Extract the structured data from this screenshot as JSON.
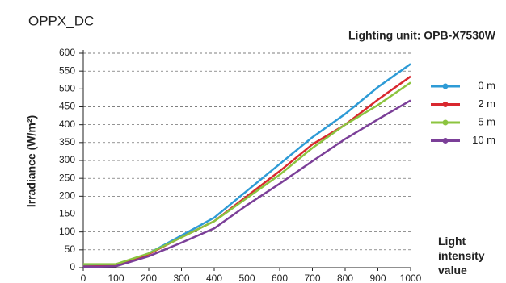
{
  "chart_data": {
    "type": "line",
    "title": "OPPX_DC",
    "subtitle": "Lighting unit: OPB-X7530W",
    "y_label": "Irradiance (W/m²)",
    "x_label": "Light intensity value",
    "x": [
      0,
      100,
      200,
      300,
      400,
      500,
      600,
      700,
      800,
      900,
      1000
    ],
    "series": [
      {
        "name": "0 m",
        "color": "#2e9bd6",
        "values": [
          5,
          5,
          40,
          90,
          140,
          215,
          290,
          365,
          430,
          505,
          570
        ]
      },
      {
        "name": "2 m",
        "color": "#d9282f",
        "values": [
          3,
          5,
          38,
          85,
          130,
          200,
          270,
          345,
          400,
          470,
          535
        ]
      },
      {
        "name": "5 m",
        "color": "#8cc43f",
        "values": [
          10,
          10,
          40,
          85,
          130,
          195,
          260,
          335,
          400,
          455,
          518
        ]
      },
      {
        "name": "10 m",
        "color": "#7b3f98",
        "values": [
          2,
          4,
          32,
          70,
          110,
          175,
          235,
          298,
          360,
          415,
          468
        ]
      }
    ],
    "xlim": [
      0,
      1000
    ],
    "xticks": [
      0,
      100,
      200,
      300,
      400,
      500,
      600,
      700,
      800,
      900,
      1000
    ],
    "ylim": [
      0,
      600
    ],
    "yticks": [
      0,
      50,
      100,
      150,
      200,
      250,
      300,
      350,
      400,
      450,
      500,
      550,
      600
    ],
    "grid": true,
    "legend": "right"
  }
}
